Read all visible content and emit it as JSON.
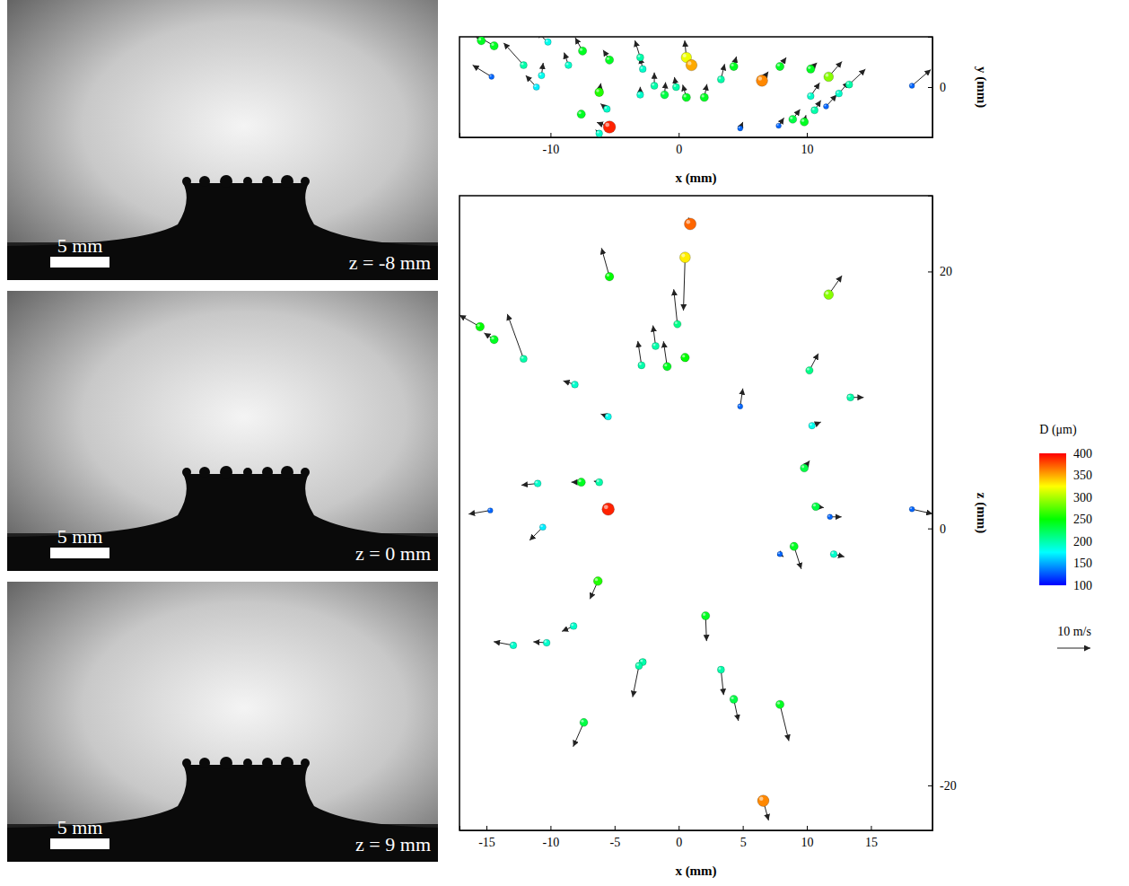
{
  "photos": [
    {
      "scale_bar": "5 mm",
      "label": "z = -8 mm"
    },
    {
      "scale_bar": "5 mm",
      "label": "z = 0 mm"
    },
    {
      "scale_bar": "5 mm",
      "label": "z = 9 mm"
    }
  ],
  "chart_data": [
    {
      "type": "scatter",
      "xlabel": "x (mm)",
      "ylabel": "y (mm)",
      "xlim": [
        -17.1,
        19.8
      ],
      "ylim": [
        -3.9,
        3.9
      ],
      "xticks": [
        -10,
        0,
        10
      ],
      "yticks": [
        0
      ],
      "x": [
        -15.4,
        -14.4,
        -12.1,
        -10.2,
        -8.6,
        -7.5,
        -14.6,
        -11.1,
        -10.7,
        -5.4,
        -6.2,
        -5.6,
        -7.6,
        -5.4,
        -6.2,
        -3.0,
        -2.8,
        -1.9,
        -3.0,
        -1.1,
        0.6,
        -0.2,
        0.6,
        1.0,
        2.0,
        3.3,
        4.3,
        6.5,
        7.9,
        4.8,
        7.8,
        8.9,
        9.8,
        10.6,
        10.3,
        10.3,
        11.7,
        11.5,
        12.5,
        13.3,
        18.2
      ],
      "values": [
        3.6,
        3.2,
        1.7,
        3.5,
        1.7,
        2.8,
        0.8,
        0,
        0.9,
        2.1,
        -0.4,
        -1.7,
        -2.1,
        -3.1,
        -3.6,
        2.3,
        1.4,
        0.1,
        -0.6,
        -0.6,
        -0.8,
        0,
        2.3,
        1.7,
        -0.8,
        0.6,
        1.6,
        0.5,
        1.6,
        -3.2,
        -3.0,
        -2.5,
        -2.7,
        -1.8,
        -0.7,
        1.4,
        0.8,
        -1.5,
        -0.5,
        0.2,
        0.1
      ],
      "diameter": [
        240,
        240,
        200,
        180,
        190,
        240,
        130,
        170,
        180,
        240,
        260,
        190,
        240,
        390,
        190,
        200,
        190,
        200,
        190,
        230,
        240,
        200,
        320,
        350,
        240,
        200,
        240,
        360,
        240,
        130,
        130,
        230,
        240,
        200,
        190,
        240,
        290,
        130,
        190,
        200,
        130
      ],
      "velocity_x": [
        -4,
        -6,
        -6,
        -3.5,
        -1.3,
        -2.2,
        -5.7,
        -3.2,
        0.5,
        -1.9,
        0.5,
        -1.9,
        -0.5,
        -3.8,
        -1.1,
        -1.6,
        -0.8,
        0,
        0,
        0.3,
        -1.1,
        -0.5,
        -0.5,
        0,
        0.8,
        1.1,
        0.8,
        1.9,
        1.9,
        0.8,
        1.6,
        2.2,
        0.5,
        1.9,
        2.7,
        1.9,
        4,
        3.2,
        3,
        4.9,
        5.7
      ],
      "velocity_y": [
        3,
        3.5,
        6.7,
        3,
        3.8,
        4,
        3.5,
        3.5,
        3.8,
        3,
        2.7,
        1.6,
        1,
        1.4,
        1.1,
        5.1,
        3.5,
        4,
        2.4,
        3.8,
        3.8,
        3,
        5.1,
        1,
        4,
        4.6,
        3,
        2.7,
        2.7,
        1.9,
        2.4,
        3,
        2,
        3,
        4,
        1.9,
        4.6,
        3.5,
        3.5,
        4.6,
        4.9
      ]
    },
    {
      "type": "scatter",
      "xlabel": "x (mm)",
      "ylabel": "z (mm)",
      "xlim": [
        -17.1,
        19.8
      ],
      "ylim": [
        -23.5,
        25.9
      ],
      "xticks": [
        -15,
        -10,
        -5,
        0,
        5,
        10,
        15
      ],
      "yticks": [
        -20,
        0,
        20
      ],
      "x": [
        0.9,
        0.5,
        -5.4,
        11.7,
        -15.5,
        -14.4,
        -12.1,
        -0.1,
        -1.8,
        -2.9,
        -0.9,
        0.5,
        10.2,
        13.4,
        -8.1,
        -5.5,
        4.8,
        10.4,
        9.8,
        -11.0,
        -7.6,
        -6.2,
        -5.5,
        -14.7,
        -10.6,
        10.7,
        11.8,
        18.2,
        9.0,
        7.9,
        12.1,
        -6.3,
        2.1,
        -8.2,
        -10.3,
        -12.9,
        -2.8,
        -3.1,
        3.3,
        4.3,
        7.9,
        -7.4,
        6.6
      ],
      "values": [
        23.7,
        21.1,
        19.6,
        18.2,
        15.7,
        14.7,
        13.2,
        15.9,
        14.2,
        12.7,
        12.6,
        13.3,
        12.3,
        10.2,
        11.2,
        8.7,
        9.5,
        8.0,
        4.7,
        3.5,
        3.6,
        3.6,
        1.5,
        1.4,
        0.1,
        1.7,
        0.9,
        1.5,
        -1.4,
        -2.0,
        -2.0,
        -4.1,
        -6.8,
        -7.6,
        -8.9,
        -9.1,
        -10.4,
        -10.7,
        -11.0,
        -13.3,
        -13.7,
        -15.1,
        -21.2
      ],
      "diameter": [
        370,
        330,
        250,
        290,
        250,
        240,
        200,
        210,
        200,
        200,
        240,
        250,
        210,
        200,
        190,
        180,
        130,
        180,
        230,
        190,
        240,
        200,
        390,
        130,
        170,
        230,
        130,
        130,
        240,
        130,
        190,
        260,
        240,
        190,
        190,
        190,
        200,
        200,
        200,
        230,
        240,
        230,
        360
      ],
      "velocity_x": [
        -0.5,
        -0.5,
        -2.4,
        4,
        -6.2,
        -3,
        -4.9,
        -1.1,
        -0.8,
        -1.1,
        -1.1,
        0.3,
        2.7,
        4,
        -3.5,
        -2.2,
        0.8,
        2.7,
        1.6,
        -4.9,
        -3,
        -1.6,
        0,
        -6.5,
        -4,
        2.4,
        3.5,
        6.2,
        2.2,
        1.1,
        3.2,
        -2.4,
        0.3,
        -3.5,
        -4,
        -5.9,
        -1.1,
        -1.9,
        0.8,
        1.4,
        2.7,
        -3.2,
        1.6
      ],
      "velocity_z": [
        1.9,
        -16,
        8.6,
        5.7,
        3.5,
        2,
        13.5,
        10.5,
        6.2,
        7.3,
        7.6,
        0.8,
        5.1,
        0,
        1.1,
        0.8,
        5.4,
        1.1,
        2.2,
        -0.5,
        0,
        0.3,
        0,
        -1.1,
        -4,
        -0.3,
        0,
        -1.4,
        -6.8,
        -0.8,
        -0.8,
        -5.4,
        -7.6,
        -1.6,
        0.3,
        1.1,
        0.5,
        -9.4,
        -7.6,
        -6.5,
        -11,
        -7.3,
        -5.9
      ],
      "colorbar": {
        "label": "D (μm)",
        "lim": [
          100,
          400
        ],
        "ticks": [
          100,
          150,
          200,
          250,
          300,
          350,
          400
        ]
      },
      "velocity_reference": {
        "value": 10,
        "label": "10 m/s"
      }
    }
  ]
}
